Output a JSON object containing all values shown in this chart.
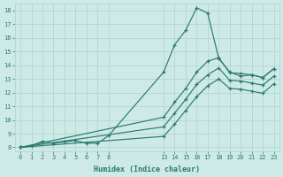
{
  "background_color": "#ceeae6",
  "grid_color": "#b8d8d4",
  "line_color": "#2a7a70",
  "xlabel": "Humidex (Indice chaleur)",
  "ylim": [
    7.7,
    18.5
  ],
  "xlim": [
    -0.5,
    23.5
  ],
  "yticks": [
    8,
    9,
    10,
    11,
    12,
    13,
    14,
    15,
    16,
    17,
    18
  ],
  "xticks_left": [
    0,
    1,
    2,
    3,
    4,
    5,
    6,
    7,
    8
  ],
  "xticks_right": [
    13,
    14,
    15,
    16,
    17,
    18,
    19,
    20,
    21,
    22,
    23
  ],
  "lines": [
    {
      "x": [
        0,
        1,
        2,
        3,
        4,
        5,
        6,
        7,
        8,
        13,
        14,
        15,
        16,
        17,
        18,
        19,
        20,
        21,
        22,
        23
      ],
      "y": [
        8.0,
        8.1,
        8.45,
        8.3,
        8.4,
        8.5,
        8.3,
        8.3,
        8.85,
        13.5,
        15.5,
        16.55,
        18.2,
        17.8,
        14.5,
        13.5,
        13.2,
        13.3,
        13.1,
        13.75
      ]
    },
    {
      "x": [
        0,
        13,
        14,
        15,
        16,
        17,
        18,
        19,
        20,
        21,
        22,
        23
      ],
      "y": [
        8.0,
        10.2,
        11.3,
        12.3,
        13.5,
        14.3,
        14.55,
        13.45,
        13.4,
        13.3,
        13.1,
        13.75
      ]
    },
    {
      "x": [
        0,
        13,
        14,
        15,
        16,
        17,
        18,
        19,
        20,
        21,
        22,
        23
      ],
      "y": [
        8.0,
        9.5,
        10.5,
        11.5,
        12.6,
        13.3,
        13.8,
        12.9,
        12.85,
        12.7,
        12.55,
        13.2
      ]
    },
    {
      "x": [
        0,
        13,
        14,
        15,
        16,
        17,
        18,
        19,
        20,
        21,
        22,
        23
      ],
      "y": [
        8.0,
        8.8,
        9.7,
        10.7,
        11.7,
        12.5,
        13.0,
        12.3,
        12.25,
        12.1,
        11.95,
        12.65
      ]
    }
  ]
}
